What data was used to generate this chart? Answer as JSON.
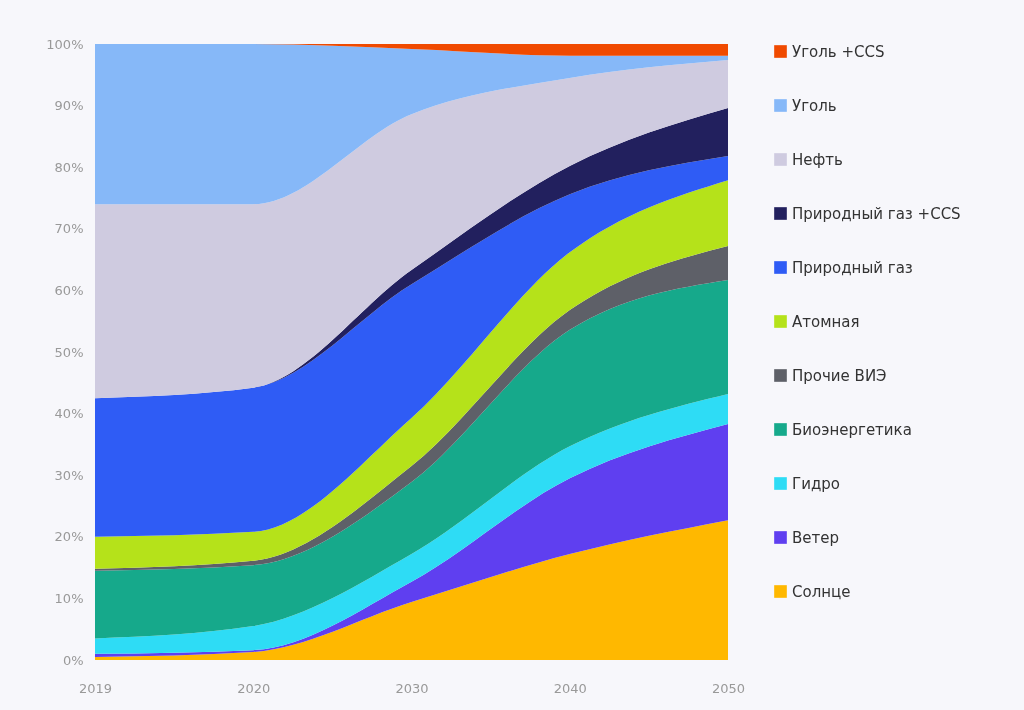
{
  "chart_data": {
    "type": "area",
    "stacked": true,
    "categories": [
      "2019",
      "2020",
      "2030",
      "2040",
      "2050"
    ],
    "ylim": [
      0,
      100
    ],
    "yticks": [
      {
        "value": 0,
        "label": "0%"
      },
      {
        "value": 10,
        "label": "10%"
      },
      {
        "value": 20,
        "label": "20%"
      },
      {
        "value": 30,
        "label": "30%"
      },
      {
        "value": 40,
        "label": "40%"
      },
      {
        "value": 50,
        "label": "50%"
      },
      {
        "value": 60,
        "label": "60%"
      },
      {
        "value": 70,
        "label": "70%"
      },
      {
        "value": 80,
        "label": "80%"
      },
      {
        "value": 90,
        "label": "90%"
      },
      {
        "value": 100,
        "label": "100%"
      }
    ],
    "grid": false,
    "legend": "right",
    "series": [
      {
        "name": "Солнце",
        "color": "#ffb800",
        "values": [
          0.5,
          1.3,
          9.4,
          17.2,
          22.7
        ]
      },
      {
        "name": "Ветер",
        "color": "#5f3ff0",
        "values": [
          0.5,
          0.3,
          3.3,
          12.3,
          15.6
        ]
      },
      {
        "name": "Гидро",
        "color": "#2edcf5",
        "values": [
          2.5,
          3.9,
          4.5,
          5.2,
          4.9
        ]
      },
      {
        "name": "Биоэнергетика",
        "color": "#16a98b",
        "values": [
          11,
          9.9,
          11.7,
          18.9,
          18.5
        ]
      },
      {
        "name": "Прочие ВИЭ",
        "color": "#5e6068",
        "values": [
          0.3,
          0.7,
          2.6,
          3.2,
          5.5
        ]
      },
      {
        "name": "Атомная",
        "color": "#b5e21a",
        "values": [
          5.2,
          4.7,
          7.8,
          9.4,
          10.7
        ]
      },
      {
        "name": "Природный газ",
        "color": "#2f5cf5",
        "values": [
          22.5,
          23.4,
          21.7,
          9.4,
          3.9
        ]
      },
      {
        "name": "Природный газ +CCS",
        "color": "#22205e",
        "values": [
          0,
          0,
          2.3,
          4.6,
          7.8
        ]
      },
      {
        "name": "Нефть",
        "color": "#cfcbe0",
        "values": [
          31.5,
          29.8,
          25.3,
          14.3,
          7.8
        ]
      },
      {
        "name": "Уголь",
        "color": "#86b8f8",
        "values": [
          26,
          26,
          10.6,
          3.6,
          0.7
        ]
      },
      {
        "name": "Уголь +CCS",
        "color": "#f04a00",
        "values": [
          0,
          0,
          0.8,
          1.9,
          1.9
        ]
      }
    ]
  }
}
